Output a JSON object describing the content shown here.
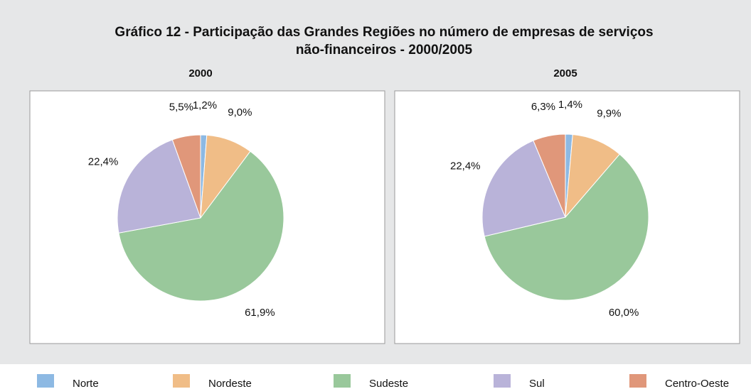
{
  "title": [
    "Gráfico 12 - Participação das Grandes Regiões no número de empresas de serviços",
    "não-financeiros - 2000/2005"
  ],
  "chart_data": [
    {
      "type": "pie",
      "title": "2000",
      "categories": [
        "Norte",
        "Nordeste",
        "Sudeste",
        "Sul",
        "Centro-Oeste"
      ],
      "values": [
        1.2,
        9.0,
        61.9,
        22.4,
        5.5
      ],
      "value_labels": [
        "1,2%",
        "9,0%",
        "61,9%",
        "22,4%",
        "5,5%"
      ],
      "colors": [
        "#8db9e3",
        "#f0bd87",
        "#99c89b",
        "#b9b3d9",
        "#e0977a"
      ]
    },
    {
      "type": "pie",
      "title": "2005",
      "categories": [
        "Norte",
        "Nordeste",
        "Sudeste",
        "Sul",
        "Centro-Oeste"
      ],
      "values": [
        1.4,
        9.9,
        60.0,
        22.4,
        6.3
      ],
      "value_labels": [
        "1,4%",
        "9,9%",
        "60,0%",
        "22,4%",
        "6,3%"
      ],
      "colors": [
        "#8db9e3",
        "#f0bd87",
        "#99c89b",
        "#b9b3d9",
        "#e0977a"
      ]
    }
  ]
}
